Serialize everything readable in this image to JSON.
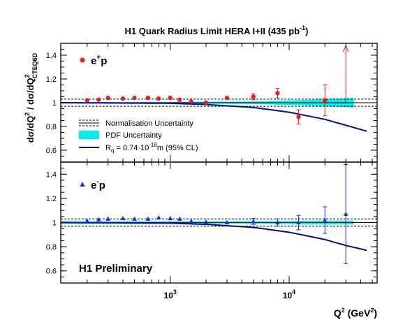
{
  "figure": {
    "title_main": "H1 Quark Radius Limit HERA I+II (435 pb",
    "title_sup": "-1",
    "title_end": ")",
    "ylabel_a": "dσ/dQ",
    "ylabel_sup1": "2",
    "ylabel_b": " / dσ/dQ",
    "ylabel_sup2": "2",
    "ylabel_sub2": "CTEQ6D",
    "xlabel_main": "Q",
    "xlabel_sup": "2",
    "xlabel_unit": " (GeV",
    "xlabel_unit_sup": "2",
    "xlabel_end": ")",
    "preliminary": "H1 Preliminary",
    "legend": {
      "norm": "Normalisation Uncertainty",
      "pdf": "PDF Uncertainty",
      "rq_prefix": "R",
      "rq_sub": "q",
      "rq_mid": " = 0.74·10",
      "rq_exp": "-18",
      "rq_suffix": "m (95% CL)"
    },
    "colors": {
      "ep_plus": "#e8201a",
      "ep_minus": "#1a2fd6",
      "pdf_band": "#00f0f0",
      "limit_curve": "#0a0a8c",
      "frame": "#000000"
    }
  },
  "chart_data": [
    {
      "type": "scatter",
      "panel": "top",
      "label_main": "e",
      "label_sup": "+",
      "label_end": "p",
      "xscale": "log",
      "xlim": [
        120,
        55000
      ],
      "ylim": [
        0.5,
        1.5
      ],
      "yticks": [
        "0.6",
        "0.8",
        "1",
        "1.2",
        "1.4"
      ],
      "norm_band": [
        0.97,
        1.03
      ],
      "pdf_band": {
        "x": [
          120,
          5000,
          15000,
          35000
        ],
        "lo": [
          0.995,
          0.99,
          0.975,
          0.96
        ],
        "hi": [
          1.005,
          1.01,
          1.025,
          1.04
        ]
      },
      "rq_curve": {
        "x": [
          120,
          1000,
          2000,
          5000,
          10000,
          20000,
          30000,
          45000
        ],
        "y": [
          1.0,
          0.995,
          0.985,
          0.96,
          0.92,
          0.86,
          0.81,
          0.76
        ]
      },
      "points": [
        {
          "x": 200,
          "y": 1.02,
          "err": 0.008
        },
        {
          "x": 250,
          "y": 1.025,
          "err": 0.008
        },
        {
          "x": 300,
          "y": 1.04,
          "err": 0.008
        },
        {
          "x": 400,
          "y": 1.035,
          "err": 0.008
        },
        {
          "x": 500,
          "y": 1.04,
          "err": 0.008
        },
        {
          "x": 650,
          "y": 1.04,
          "err": 0.008
        },
        {
          "x": 800,
          "y": 1.035,
          "err": 0.008
        },
        {
          "x": 1000,
          "y": 1.04,
          "err": 0.01
        },
        {
          "x": 1200,
          "y": 1.025,
          "err": 0.01
        },
        {
          "x": 1500,
          "y": 1.01,
          "err": 0.01
        },
        {
          "x": 2000,
          "y": 1.0,
          "err": 0.012
        },
        {
          "x": 3000,
          "y": 1.04,
          "err": 0.015
        },
        {
          "x": 5000,
          "y": 1.05,
          "err": 0.025
        },
        {
          "x": 8000,
          "y": 1.08,
          "err": 0.04
        },
        {
          "x": 12000,
          "y": 0.88,
          "err": 0.06
        },
        {
          "x": 20000,
          "y": 1.02,
          "err": 0.13
        }
      ],
      "upper_limit_arrow": {
        "x": 30000,
        "y_from": 1.0,
        "y_to": 1.48
      }
    },
    {
      "type": "scatter",
      "panel": "bottom",
      "label_main": "e",
      "label_sup": "-",
      "label_end": "p",
      "xscale": "log",
      "xlim": [
        120,
        55000
      ],
      "ylim": [
        0.5,
        1.5
      ],
      "yticks": [
        "0.6",
        "0.8",
        "1",
        "1.2",
        "1.4"
      ],
      "xticks": [
        {
          "value": 1000,
          "base": "10",
          "exp": "3"
        },
        {
          "value": 10000,
          "base": "10",
          "exp": "4"
        }
      ],
      "norm_band": [
        0.97,
        1.03
      ],
      "pdf_band": {
        "x": [
          120,
          5000,
          15000,
          35000
        ],
        "lo": [
          0.99,
          0.99,
          0.985,
          0.985
        ],
        "hi": [
          1.01,
          1.01,
          1.015,
          1.015
        ]
      },
      "rq_curve": {
        "x": [
          120,
          1000,
          2000,
          5000,
          10000,
          20000,
          30000,
          45000
        ],
        "y": [
          1.0,
          0.995,
          0.985,
          0.96,
          0.92,
          0.86,
          0.81,
          0.77
        ]
      },
      "points": [
        {
          "x": 200,
          "y": 1.015,
          "err": 0.008
        },
        {
          "x": 250,
          "y": 1.025,
          "err": 0.008
        },
        {
          "x": 300,
          "y": 1.03,
          "err": 0.008
        },
        {
          "x": 400,
          "y": 1.035,
          "err": 0.008
        },
        {
          "x": 500,
          "y": 1.03,
          "err": 0.008
        },
        {
          "x": 650,
          "y": 1.03,
          "err": 0.008
        },
        {
          "x": 800,
          "y": 1.04,
          "err": 0.008
        },
        {
          "x": 1000,
          "y": 1.035,
          "err": 0.01
        },
        {
          "x": 1200,
          "y": 1.03,
          "err": 0.01
        },
        {
          "x": 1500,
          "y": 1.01,
          "err": 0.01
        },
        {
          "x": 2000,
          "y": 1.005,
          "err": 0.012
        },
        {
          "x": 3000,
          "y": 1.0,
          "err": 0.012
        },
        {
          "x": 5000,
          "y": 1.01,
          "err": 0.025
        },
        {
          "x": 8000,
          "y": 1.0,
          "err": 0.03
        },
        {
          "x": 12000,
          "y": 1.0,
          "err": 0.06
        },
        {
          "x": 20000,
          "y": 1.02,
          "err": 0.11
        },
        {
          "x": 30000,
          "y": 1.07,
          "err": 0.41
        }
      ]
    }
  ]
}
